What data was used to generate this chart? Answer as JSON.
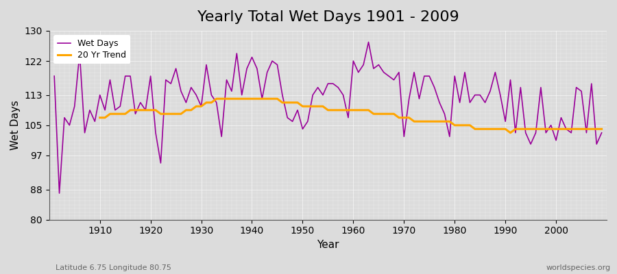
{
  "title": "Yearly Total Wet Days 1901 - 2009",
  "xlabel": "Year",
  "ylabel": "Wet Days",
  "subtitle": "Latitude 6.75 Longitude 80.75",
  "watermark": "worldspecies.org",
  "years": [
    1901,
    1902,
    1903,
    1904,
    1905,
    1906,
    1907,
    1908,
    1909,
    1910,
    1911,
    1912,
    1913,
    1914,
    1915,
    1916,
    1917,
    1918,
    1919,
    1920,
    1921,
    1922,
    1923,
    1924,
    1925,
    1926,
    1927,
    1928,
    1929,
    1930,
    1931,
    1932,
    1933,
    1934,
    1935,
    1936,
    1937,
    1938,
    1939,
    1940,
    1941,
    1942,
    1943,
    1944,
    1945,
    1946,
    1947,
    1948,
    1949,
    1950,
    1951,
    1952,
    1953,
    1954,
    1955,
    1956,
    1957,
    1958,
    1959,
    1960,
    1961,
    1962,
    1963,
    1964,
    1965,
    1966,
    1967,
    1968,
    1969,
    1970,
    1971,
    1972,
    1973,
    1974,
    1975,
    1976,
    1977,
    1978,
    1979,
    1980,
    1981,
    1982,
    1983,
    1984,
    1985,
    1986,
    1987,
    1988,
    1989,
    1990,
    1991,
    1992,
    1993,
    1994,
    1995,
    1996,
    1997,
    1998,
    1999,
    2000,
    2001,
    2002,
    2003,
    2004,
    2005,
    2006,
    2007,
    2008,
    2009
  ],
  "wet_days": [
    118,
    87,
    107,
    105,
    110,
    124,
    103,
    109,
    106,
    113,
    109,
    117,
    109,
    110,
    118,
    118,
    108,
    111,
    109,
    118,
    103,
    95,
    117,
    116,
    120,
    114,
    111,
    115,
    113,
    110,
    121,
    113,
    111,
    102,
    117,
    114,
    124,
    113,
    120,
    123,
    120,
    112,
    119,
    122,
    121,
    113,
    107,
    106,
    109,
    104,
    106,
    113,
    115,
    113,
    116,
    116,
    115,
    113,
    107,
    122,
    119,
    121,
    127,
    120,
    121,
    119,
    118,
    117,
    119,
    102,
    112,
    119,
    112,
    118,
    118,
    115,
    111,
    108,
    102,
    118,
    111,
    119,
    111,
    113,
    113,
    111,
    114,
    119,
    113,
    106,
    117,
    103,
    115,
    103,
    100,
    103,
    115,
    103,
    105,
    101,
    107,
    104,
    103,
    115,
    114,
    103,
    116,
    100,
    103
  ],
  "trend_years": [
    1910,
    1911,
    1912,
    1913,
    1914,
    1915,
    1916,
    1917,
    1918,
    1919,
    1920,
    1921,
    1922,
    1923,
    1924,
    1925,
    1926,
    1927,
    1928,
    1929,
    1930,
    1931,
    1932,
    1933,
    1934,
    1935,
    1936,
    1937,
    1938,
    1939,
    1940,
    1941,
    1942,
    1943,
    1944,
    1945,
    1946,
    1947,
    1948,
    1949,
    1950,
    1951,
    1952,
    1953,
    1954,
    1955,
    1956,
    1957,
    1958,
    1959,
    1960,
    1961,
    1962,
    1963,
    1964,
    1965,
    1966,
    1967,
    1968,
    1969,
    1970,
    1971,
    1972,
    1973,
    1974,
    1975,
    1976,
    1977,
    1978,
    1979,
    1980,
    1981,
    1982,
    1983,
    1984,
    1985,
    1986,
    1987,
    1988,
    1989,
    1990,
    1991,
    1992,
    1993,
    1994,
    1995,
    1996,
    1997,
    1998,
    1999,
    2000,
    2001,
    2002,
    2003,
    2004,
    2005,
    2006,
    2007,
    2008,
    2009
  ],
  "trend_vals": [
    107,
    107,
    108,
    108,
    108,
    108,
    109,
    109,
    109,
    109,
    109,
    109,
    108,
    108,
    108,
    108,
    108,
    109,
    109,
    110,
    110,
    111,
    111,
    112,
    112,
    112,
    112,
    112,
    112,
    112,
    112,
    112,
    112,
    112,
    112,
    112,
    111,
    111,
    111,
    111,
    110,
    110,
    110,
    110,
    110,
    109,
    109,
    109,
    109,
    109,
    109,
    109,
    109,
    109,
    108,
    108,
    108,
    108,
    108,
    107,
    107,
    107,
    106,
    106,
    106,
    106,
    106,
    106,
    106,
    106,
    105,
    105,
    105,
    105,
    104,
    104,
    104,
    104,
    104,
    104,
    104,
    103,
    104,
    104,
    104,
    104,
    104,
    104,
    104,
    104,
    104,
    104,
    104,
    104,
    104,
    104,
    104,
    104,
    104,
    104
  ],
  "wet_days_color": "#990099",
  "trend_color": "#FFA500",
  "bg_color": "#dcdcdc",
  "plot_bg_color": "#dcdcdc",
  "ylim": [
    80,
    130
  ],
  "yticks": [
    80,
    88,
    97,
    105,
    113,
    122,
    130
  ],
  "xtick_years": [
    1910,
    1920,
    1930,
    1940,
    1950,
    1960,
    1970,
    1980,
    1990,
    2000
  ],
  "title_fontsize": 16,
  "label_fontsize": 11,
  "tick_fontsize": 10,
  "minor_grid_color": "#ffffff",
  "major_grid_color": "#ffffff"
}
